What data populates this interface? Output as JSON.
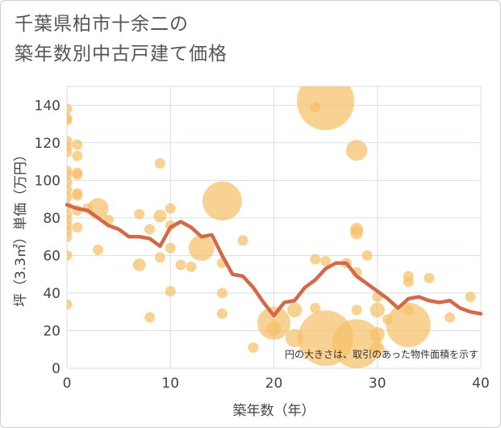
{
  "title_lines": [
    "千葉県柏市十余二の",
    "築年数別中古戸建て価格"
  ],
  "chart_data": {
    "type": "scatter",
    "xlabel": "築年数（年）",
    "ylabel": "坪（3.3㎡）単価（万円）",
    "xlim": [
      0,
      40
    ],
    "ylim": [
      0,
      150
    ],
    "x_ticks": [
      0,
      10,
      20,
      30,
      40
    ],
    "y_ticks": [
      0,
      20,
      40,
      60,
      80,
      100,
      120,
      140
    ],
    "grid": true,
    "note": "円の大きさは、取引のあった物件面積を示す",
    "colors": {
      "bubble": "#f5c169",
      "line": "#d4694a",
      "grid": "#d7dfe6"
    },
    "points": [
      {
        "x": 0,
        "y": 138,
        "s": 1
      },
      {
        "x": 0,
        "y": 133,
        "s": 1
      },
      {
        "x": 0,
        "y": 132,
        "s": 1
      },
      {
        "x": 0,
        "y": 121,
        "s": 1
      },
      {
        "x": 0,
        "y": 118,
        "s": 1
      },
      {
        "x": 0,
        "y": 115,
        "s": 1
      },
      {
        "x": 0,
        "y": 105,
        "s": 1
      },
      {
        "x": 0,
        "y": 103,
        "s": 1
      },
      {
        "x": 0,
        "y": 99,
        "s": 1
      },
      {
        "x": 0,
        "y": 95,
        "s": 1
      },
      {
        "x": 0,
        "y": 91,
        "s": 1
      },
      {
        "x": 0,
        "y": 86,
        "s": 1
      },
      {
        "x": 0,
        "y": 82,
        "s": 1
      },
      {
        "x": 0,
        "y": 79,
        "s": 1
      },
      {
        "x": 0,
        "y": 76,
        "s": 1
      },
      {
        "x": 0,
        "y": 73,
        "s": 1
      },
      {
        "x": 0,
        "y": 70,
        "s": 1
      },
      {
        "x": 0,
        "y": 60,
        "s": 1
      },
      {
        "x": 0,
        "y": 34,
        "s": 1
      },
      {
        "x": 1,
        "y": 119,
        "s": 1
      },
      {
        "x": 1,
        "y": 113,
        "s": 1
      },
      {
        "x": 1,
        "y": 104,
        "s": 1
      },
      {
        "x": 1,
        "y": 103,
        "s": 1
      },
      {
        "x": 1,
        "y": 93,
        "s": 1
      },
      {
        "x": 1,
        "y": 92,
        "s": 1
      },
      {
        "x": 1,
        "y": 84,
        "s": 1
      },
      {
        "x": 1,
        "y": 75,
        "s": 1
      },
      {
        "x": 2,
        "y": 85,
        "s": 1
      },
      {
        "x": 3,
        "y": 85,
        "s": 4
      },
      {
        "x": 3,
        "y": 63,
        "s": 1
      },
      {
        "x": 4,
        "y": 79,
        "s": 1
      },
      {
        "x": 7,
        "y": 82,
        "s": 1
      },
      {
        "x": 7,
        "y": 55,
        "s": 1.5
      },
      {
        "x": 8,
        "y": 74,
        "s": 1
      },
      {
        "x": 8,
        "y": 27,
        "s": 1
      },
      {
        "x": 9,
        "y": 109,
        "s": 1
      },
      {
        "x": 9,
        "y": 81,
        "s": 1.5
      },
      {
        "x": 9,
        "y": 59,
        "s": 1
      },
      {
        "x": 10,
        "y": 85,
        "s": 1
      },
      {
        "x": 10,
        "y": 76,
        "s": 1
      },
      {
        "x": 10,
        "y": 64,
        "s": 1
      },
      {
        "x": 10,
        "y": 41,
        "s": 1
      },
      {
        "x": 11,
        "y": 55,
        "s": 1
      },
      {
        "x": 12,
        "y": 54,
        "s": 1
      },
      {
        "x": 13,
        "y": 64,
        "s": 6
      },
      {
        "x": 15,
        "y": 89,
        "s": 14
      },
      {
        "x": 15,
        "y": 56,
        "s": 1
      },
      {
        "x": 15,
        "y": 40,
        "s": 1
      },
      {
        "x": 15,
        "y": 29,
        "s": 1
      },
      {
        "x": 17,
        "y": 68,
        "s": 1
      },
      {
        "x": 18,
        "y": 11,
        "s": 1
      },
      {
        "x": 20,
        "y": 24,
        "s": 10
      },
      {
        "x": 20,
        "y": 21,
        "s": 2
      },
      {
        "x": 22,
        "y": 31,
        "s": 2
      },
      {
        "x": 22,
        "y": 16,
        "s": 3
      },
      {
        "x": 24,
        "y": 139,
        "s": 1
      },
      {
        "x": 24,
        "y": 58,
        "s": 1
      },
      {
        "x": 24,
        "y": 32,
        "s": 1
      },
      {
        "x": 25,
        "y": 142,
        "s": 30
      },
      {
        "x": 25,
        "y": 57,
        "s": 1
      },
      {
        "x": 25,
        "y": 16,
        "s": 28
      },
      {
        "x": 27,
        "y": 56,
        "s": 1
      },
      {
        "x": 28,
        "y": 116,
        "s": 4
      },
      {
        "x": 28,
        "y": 74,
        "s": 1.5
      },
      {
        "x": 28,
        "y": 72,
        "s": 1.5
      },
      {
        "x": 28,
        "y": 51,
        "s": 1
      },
      {
        "x": 28,
        "y": 31,
        "s": 1
      },
      {
        "x": 28,
        "y": 13,
        "s": 22
      },
      {
        "x": 29,
        "y": 60,
        "s": 1
      },
      {
        "x": 30,
        "y": 38,
        "s": 1
      },
      {
        "x": 30,
        "y": 31,
        "s": 2
      },
      {
        "x": 30,
        "y": 18,
        "s": 2
      },
      {
        "x": 30,
        "y": 10,
        "s": 2
      },
      {
        "x": 31,
        "y": 26,
        "s": 1
      },
      {
        "x": 33,
        "y": 49,
        "s": 1
      },
      {
        "x": 33,
        "y": 46,
        "s": 1
      },
      {
        "x": 33,
        "y": 31,
        "s": 1
      },
      {
        "x": 33,
        "y": 23,
        "s": 18
      },
      {
        "x": 35,
        "y": 48,
        "s": 1
      },
      {
        "x": 37,
        "y": 27,
        "s": 1
      },
      {
        "x": 39,
        "y": 38,
        "s": 1
      }
    ],
    "trend": {
      "x": [
        0,
        1,
        2,
        3,
        4,
        5,
        6,
        7,
        8,
        9,
        10,
        11,
        12,
        13,
        14,
        15,
        16,
        17,
        18,
        19,
        20,
        21,
        22,
        23,
        24,
        25,
        26,
        27,
        28,
        29,
        30,
        31,
        32,
        33,
        34,
        35,
        36,
        37,
        38,
        39,
        40
      ],
      "y": [
        87,
        85,
        84,
        80,
        76,
        74,
        70,
        70,
        69,
        65,
        75,
        78,
        75,
        70,
        71,
        60,
        50,
        49,
        43,
        35,
        28,
        35,
        36,
        43,
        47,
        53,
        56,
        56,
        49,
        45,
        41,
        37,
        32,
        37,
        38,
        36,
        35,
        36,
        32,
        30,
        29
      ]
    }
  }
}
